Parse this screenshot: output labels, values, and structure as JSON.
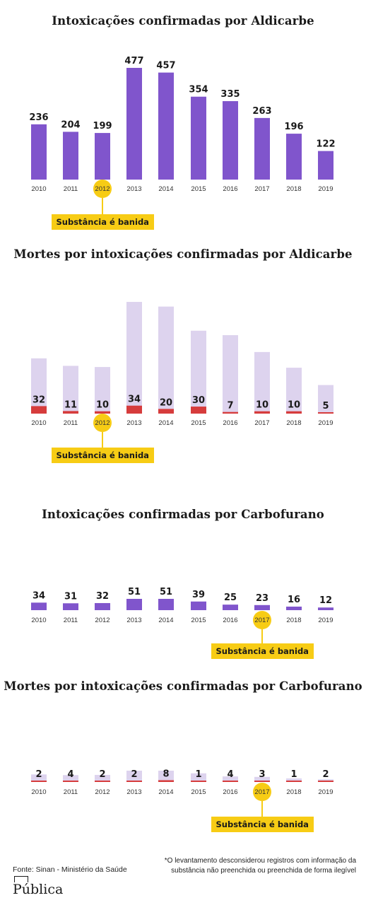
{
  "colors": {
    "bar_purple": "#8055cc",
    "bar_light": "#ddd3ee",
    "bar_red": "#d63c3c",
    "highlight": "#f7cc15"
  },
  "chart_data": [
    {
      "type": "bar",
      "title": "Intoxicações confirmadas por Aldicarbe",
      "categories": [
        "2010",
        "2011",
        "2012",
        "2013",
        "2014",
        "2015",
        "2016",
        "2017",
        "2018",
        "2019"
      ],
      "values": [
        236,
        204,
        199,
        477,
        457,
        354,
        335,
        263,
        196,
        122
      ],
      "highlight_category": "2012",
      "annotation": "Substância é banida"
    },
    {
      "type": "bar",
      "title": "Mortes por intoxicações confirmadas por Aldicarbe",
      "categories": [
        "2010",
        "2011",
        "2012",
        "2013",
        "2014",
        "2015",
        "2016",
        "2017",
        "2018",
        "2019"
      ],
      "series": [
        {
          "values": [
            236,
            204,
            199,
            477,
            457,
            354,
            335,
            263,
            196,
            122
          ]
        },
        {
          "values": [
            32,
            11,
            10,
            34,
            20,
            30,
            7,
            10,
            10,
            5
          ]
        }
      ],
      "highlight_category": "2012",
      "annotation": "Substância é banida"
    },
    {
      "type": "bar",
      "title": "Intoxicações confirmadas por Carbofurano",
      "categories": [
        "2010",
        "2011",
        "2012",
        "2013",
        "2014",
        "2015",
        "2016",
        "2017",
        "2018",
        "2019"
      ],
      "values": [
        34,
        31,
        32,
        51,
        51,
        39,
        25,
        23,
        16,
        12
      ],
      "highlight_category": "2017",
      "annotation": "Substância é banida"
    },
    {
      "type": "bar",
      "title": "Mortes por intoxicações confirmadas por Carbofurano",
      "categories": [
        "2010",
        "2011",
        "2012",
        "2013",
        "2014",
        "2015",
        "2016",
        "2017",
        "2018",
        "2019"
      ],
      "series": [
        {
          "values": [
            34,
            31,
            32,
            51,
            51,
            39,
            25,
            23,
            16,
            12
          ]
        },
        {
          "values": [
            2,
            4,
            2,
            2,
            8,
            1,
            4,
            3,
            1,
            2
          ]
        }
      ],
      "highlight_category": "2017",
      "annotation": "Substância é banida"
    }
  ],
  "footer": {
    "source": "Fonte: Sinan - Ministério da Saúde",
    "note_line1": "*O levantamento desconsiderou registros com informação da",
    "note_line2": "substância não preenchida ou preenchida de forma ilegível",
    "logo": "Pública"
  }
}
